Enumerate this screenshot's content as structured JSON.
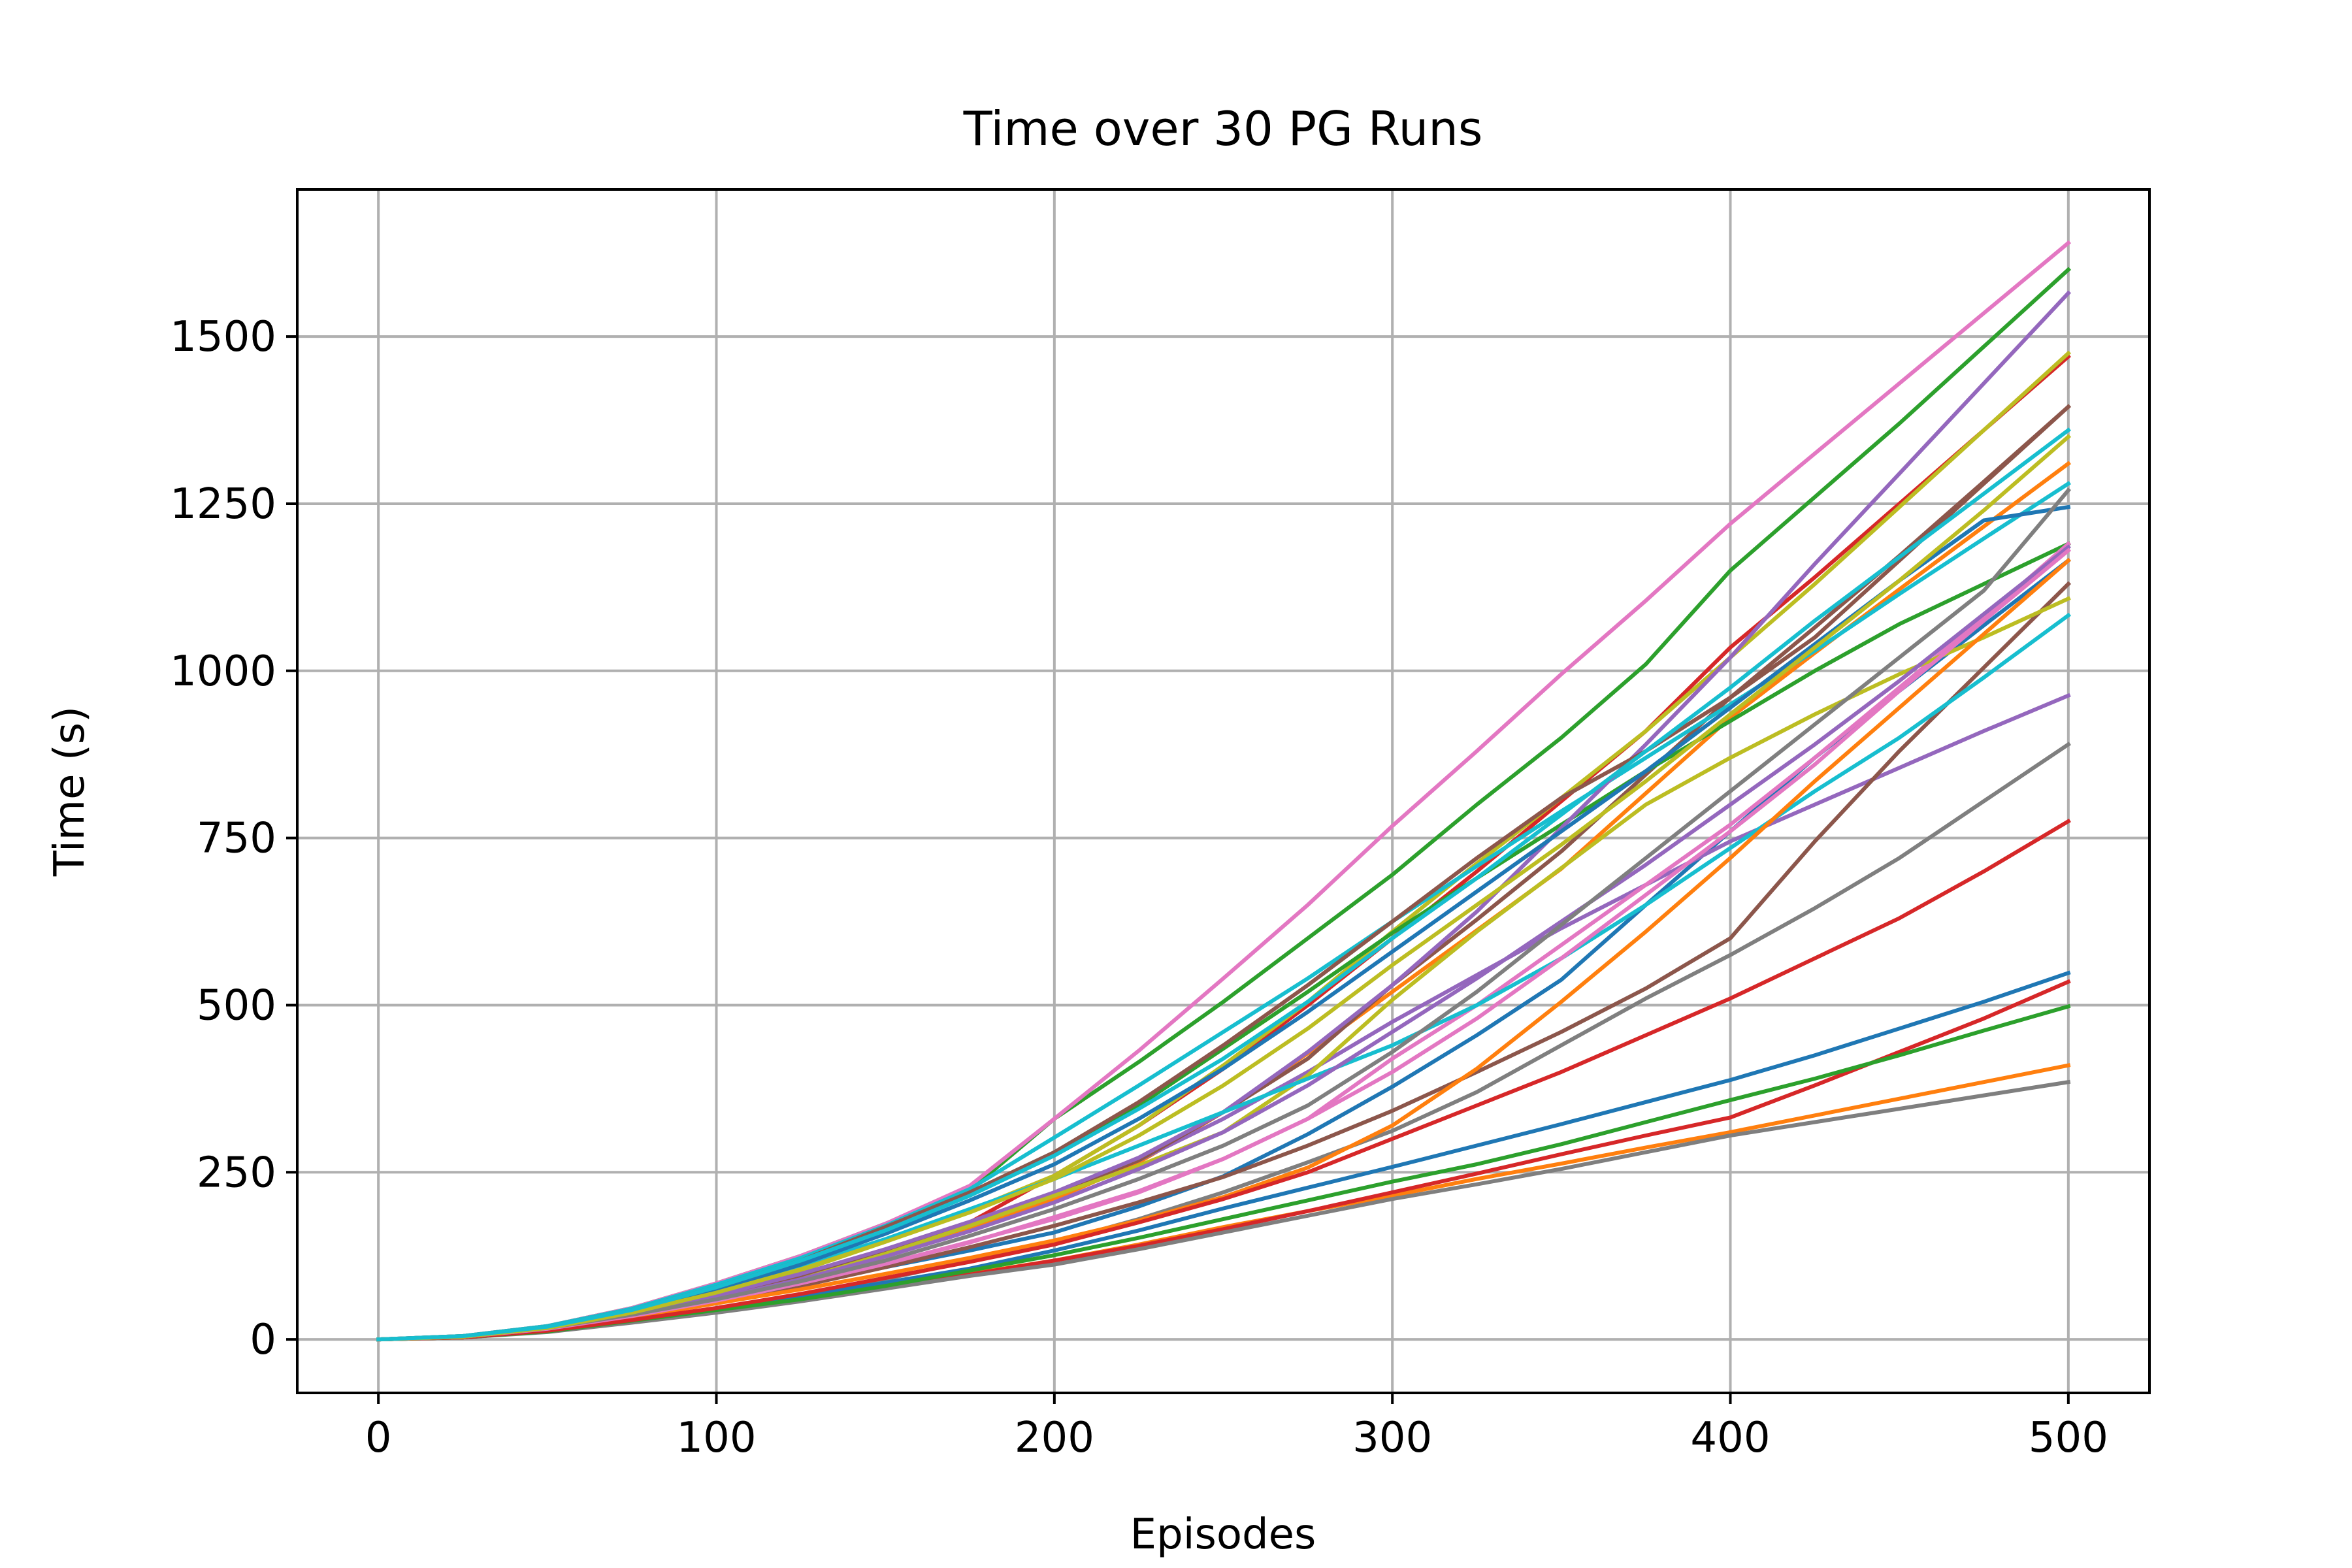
{
  "chart_data": {
    "type": "line",
    "title": "Time over 30 PG Runs",
    "xlabel": "Episodes",
    "ylabel": "Time (s)",
    "xlim": [
      -24,
      524
    ],
    "ylim": [
      -80,
      1720
    ],
    "xticks": [
      0,
      100,
      200,
      300,
      400,
      500
    ],
    "yticks": [
      0,
      250,
      500,
      750,
      1000,
      1250,
      1500
    ],
    "grid": true,
    "legend": "none",
    "x": [
      0,
      25,
      50,
      75,
      100,
      125,
      150,
      175,
      200,
      225,
      250,
      275,
      300,
      325,
      350,
      375,
      400,
      425,
      450,
      475,
      500
    ],
    "series": [
      {
        "color": "#1f77b4",
        "values": [
          0,
          4,
          17,
          38,
          60,
          84,
          108,
          133,
          160,
          199,
          244,
          307,
          378,
          455,
          538,
          650,
          760,
          870,
          970,
          1068,
          1165
        ]
      },
      {
        "color": "#ff7f0e",
        "values": [
          0,
          4,
          17,
          38,
          68,
          96,
          130,
          168,
          210,
          265,
          340,
          428,
          520,
          612,
          704,
          817,
          930,
          1027,
          1122,
          1216,
          1310
        ]
      },
      {
        "color": "#2ca02c",
        "values": [
          0,
          5,
          20,
          47,
          84,
          125,
          173,
          223,
          330,
          415,
          505,
          600,
          695,
          800,
          900,
          1010,
          1150,
          1260,
          1370,
          1485,
          1600
        ]
      },
      {
        "color": "#d62728",
        "values": [
          0,
          4,
          16,
          36,
          62,
          94,
          132,
          175,
          245,
          320,
          405,
          500,
          600,
          700,
          805,
          910,
          1035,
          1140,
          1250,
          1360,
          1470
        ]
      },
      {
        "color": "#9467bd",
        "values": [
          0,
          4,
          17,
          39,
          66,
          98,
          134,
          174,
          218,
          268,
          330,
          400,
          475,
          545,
          615,
          680,
          745,
          800,
          855,
          910,
          963
        ]
      },
      {
        "color": "#8c564b",
        "values": [
          0,
          4,
          17,
          38,
          64,
          96,
          132,
          175,
          218,
          268,
          340,
          420,
          530,
          628,
          730,
          845,
          960,
          1065,
          1172,
          1283,
          1395
        ]
      },
      {
        "color": "#e377c2",
        "values": [
          0,
          5,
          20,
          47,
          84,
          125,
          173,
          230,
          330,
          432,
          540,
          650,
          768,
          880,
          995,
          1105,
          1220,
          1325,
          1430,
          1535,
          1640
        ]
      },
      {
        "color": "#7f7f7f",
        "values": [
          0,
          3,
          12,
          28,
          46,
          65,
          90,
          118,
          145,
          180,
          220,
          265,
          312,
          370,
          440,
          510,
          575,
          645,
          720,
          805,
          890
        ]
      },
      {
        "color": "#bcbd22",
        "values": [
          0,
          4,
          17,
          38,
          68,
          103,
          146,
          193,
          245,
          320,
          410,
          505,
          610,
          712,
          810,
          910,
          1020,
          1130,
          1245,
          1360,
          1475
        ]
      },
      {
        "color": "#17becf",
        "values": [
          0,
          5,
          20,
          46,
          82,
          122,
          170,
          225,
          302,
          380,
          460,
          540,
          625,
          708,
          790,
          870,
          950,
          1030,
          1115,
          1198,
          1280
        ]
      },
      {
        "color": "#1f77b4",
        "values": [
          0,
          3,
          12,
          28,
          46,
          65,
          85,
          106,
          133,
          163,
          196,
          227,
          258,
          290,
          322,
          355,
          388,
          425,
          465,
          505,
          548
        ]
      },
      {
        "color": "#ff7f0e",
        "values": [
          0,
          3,
          12,
          27,
          42,
          58,
          78,
          98,
          118,
          142,
          168,
          192,
          215,
          240,
          263,
          287,
          310,
          335,
          360,
          385,
          410
        ]
      },
      {
        "color": "#2ca02c",
        "values": [
          0,
          4,
          18,
          42,
          75,
          115,
          162,
          218,
          278,
          350,
          435,
          520,
          608,
          690,
          770,
          850,
          925,
          1000,
          1070,
          1130,
          1190
        ]
      },
      {
        "color": "#d62728",
        "values": [
          0,
          3,
          12,
          27,
          42,
          58,
          77,
          97,
          118,
          140,
          165,
          192,
          220,
          248,
          277,
          305,
          332,
          380,
          430,
          480,
          535
        ]
      },
      {
        "color": "#9467bd",
        "values": [
          0,
          4,
          17,
          39,
          66,
          98,
          135,
          176,
          220,
          272,
          340,
          430,
          530,
          640,
          765,
          890,
          1020,
          1160,
          1295,
          1430,
          1565
        ]
      },
      {
        "color": "#8c564b",
        "values": [
          0,
          4,
          15,
          33,
          55,
          80,
          108,
          138,
          170,
          205,
          243,
          290,
          342,
          400,
          460,
          525,
          600,
          745,
          880,
          1005,
          1130
        ]
      },
      {
        "color": "#e377c2",
        "values": [
          0,
          4,
          16,
          34,
          57,
          84,
          113,
          146,
          180,
          220,
          270,
          330,
          420,
          500,
          590,
          680,
          770,
          870,
          975,
          1080,
          1190
        ]
      },
      {
        "color": "#7f7f7f",
        "values": [
          0,
          3,
          11,
          25,
          40,
          57,
          76,
          95,
          112,
          135,
          160,
          185,
          210,
          232,
          255,
          280,
          305,
          325,
          345,
          365,
          385
        ]
      },
      {
        "color": "#bcbd22",
        "values": [
          0,
          4,
          16,
          35,
          60,
          90,
          128,
          170,
          215,
          260,
          310,
          395,
          508,
          610,
          705,
          800,
          870,
          935,
          995,
          1050,
          1108
        ]
      },
      {
        "color": "#17becf",
        "values": [
          0,
          4,
          18,
          42,
          74,
          110,
          150,
          195,
          240,
          290,
          340,
          390,
          440,
          500,
          570,
          650,
          735,
          820,
          900,
          990,
          1083
        ]
      },
      {
        "color": "#1f77b4",
        "values": [
          0,
          4,
          18,
          42,
          74,
          112,
          158,
          208,
          262,
          330,
          405,
          490,
          580,
          670,
          760,
          850,
          945,
          1040,
          1135,
          1225,
          1245
        ]
      },
      {
        "color": "#ff7f0e",
        "values": [
          0,
          4,
          15,
          33,
          54,
          75,
          98,
          122,
          148,
          178,
          213,
          257,
          320,
          405,
          505,
          610,
          720,
          835,
          945,
          1055,
          1165
        ]
      },
      {
        "color": "#2ca02c",
        "values": [
          0,
          3,
          12,
          28,
          44,
          60,
          80,
          103,
          126,
          152,
          180,
          208,
          236,
          262,
          292,
          325,
          358,
          390,
          425,
          462,
          498
        ]
      },
      {
        "color": "#d62728",
        "values": [
          0,
          3,
          13,
          29,
          47,
          68,
          92,
          116,
          142,
          175,
          210,
          250,
          300,
          350,
          400,
          455,
          510,
          570,
          630,
          700,
          775
        ]
      },
      {
        "color": "#9467bd",
        "values": [
          0,
          4,
          16,
          36,
          61,
          90,
          124,
          162,
          205,
          255,
          310,
          380,
          460,
          540,
          625,
          710,
          800,
          890,
          985,
          1085,
          1185
        ]
      },
      {
        "color": "#8c564b",
        "values": [
          0,
          5,
          19,
          44,
          78,
          118,
          168,
          220,
          280,
          355,
          440,
          530,
          625,
          720,
          810,
          880,
          960,
          1050,
          1165,
          1280,
          1395
        ]
      },
      {
        "color": "#e377c2",
        "values": [
          0,
          4,
          16,
          35,
          58,
          84,
          113,
          145,
          183,
          222,
          270,
          330,
          400,
          480,
          570,
          665,
          760,
          860,
          970,
          1075,
          1180
        ]
      },
      {
        "color": "#7f7f7f",
        "values": [
          0,
          4,
          17,
          37,
          60,
          87,
          118,
          155,
          195,
          240,
          290,
          350,
          430,
          520,
          620,
          720,
          820,
          920,
          1020,
          1120,
          1270
        ]
      },
      {
        "color": "#bcbd22",
        "values": [
          0,
          4,
          17,
          40,
          70,
          105,
          146,
          190,
          240,
          305,
          380,
          465,
          560,
          650,
          740,
          835,
          935,
          1035,
          1135,
          1240,
          1350
        ]
      },
      {
        "color": "#17becf",
        "values": [
          0,
          5,
          19,
          44,
          78,
          118,
          163,
          215,
          275,
          345,
          420,
          505,
          600,
          690,
          785,
          880,
          975,
          1075,
          1170,
          1265,
          1360
        ]
      }
    ]
  }
}
